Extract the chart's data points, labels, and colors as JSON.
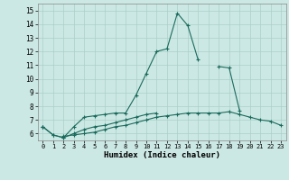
{
  "xlabel": "Humidex (Indice chaleur)",
  "x": [
    0,
    1,
    2,
    3,
    4,
    5,
    6,
    7,
    8,
    9,
    10,
    11,
    12,
    13,
    14,
    15,
    16,
    17,
    18,
    19,
    20,
    21,
    22,
    23
  ],
  "line1": [
    6.5,
    5.9,
    5.7,
    6.5,
    7.2,
    7.3,
    7.4,
    7.5,
    7.5,
    8.8,
    10.4,
    12.0,
    12.2,
    14.8,
    13.9,
    11.4,
    null,
    10.9,
    10.8,
    7.7,
    null,
    null,
    null,
    null
  ],
  "line2": [
    6.5,
    5.9,
    5.7,
    6.0,
    6.3,
    6.5,
    6.6,
    6.8,
    7.0,
    7.2,
    7.4,
    7.5,
    null,
    null,
    null,
    null,
    null,
    null,
    null,
    null,
    null,
    null,
    null,
    null
  ],
  "line3": [
    6.5,
    null,
    5.8,
    5.9,
    6.0,
    6.1,
    6.3,
    6.5,
    6.6,
    6.8,
    7.0,
    7.2,
    7.3,
    7.4,
    7.5,
    7.5,
    7.5,
    7.5,
    7.6,
    7.4,
    7.2,
    7.0,
    6.9,
    6.6
  ],
  "line_color": "#1a6b5c",
  "bg_color": "#cce8e4",
  "grid_color": "#aacfca",
  "ylim": [
    5.5,
    15.5
  ],
  "xlim": [
    -0.5,
    23.5
  ],
  "yticks": [
    6,
    7,
    8,
    9,
    10,
    11,
    12,
    13,
    14,
    15
  ],
  "xticks": [
    0,
    1,
    2,
    3,
    4,
    5,
    6,
    7,
    8,
    9,
    10,
    11,
    12,
    13,
    14,
    15,
    16,
    17,
    18,
    19,
    20,
    21,
    22,
    23
  ]
}
